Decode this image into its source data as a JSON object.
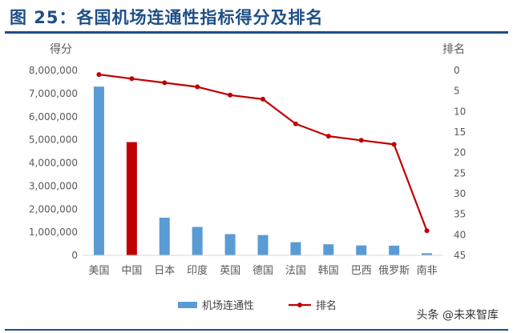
{
  "header": {
    "title": "图 25：各国机场连通性指标得分及排名"
  },
  "watermark": "头条 @未来智库",
  "chart_data": {
    "type": "bar",
    "categories": [
      "美国",
      "中国",
      "日本",
      "印度",
      "英国",
      "德国",
      "法国",
      "韩国",
      "巴西",
      "俄罗斯",
      "南非"
    ],
    "series": [
      {
        "name": "机场连通性",
        "type": "bar",
        "axis": "left",
        "values": [
          7300000,
          4900000,
          1630000,
          1230000,
          920000,
          880000,
          570000,
          480000,
          430000,
          420000,
          90000
        ],
        "highlight_index": 1
      },
      {
        "name": "排名",
        "type": "line",
        "axis": "right",
        "values": [
          1,
          2,
          3,
          4,
          6,
          7,
          13,
          16,
          17,
          18,
          39
        ]
      }
    ],
    "left_axis": {
      "label": "得分",
      "min": 0,
      "max": 8000000,
      "step": 1000000
    },
    "right_axis": {
      "label": "排名",
      "min": 0,
      "max": 45,
      "step": 5,
      "inverted": true
    },
    "colors": {
      "bar": "#5b9bd5",
      "bar_highlight": "#c00000",
      "line": "#c00000"
    },
    "legend_position": "bottom",
    "grid": false
  }
}
